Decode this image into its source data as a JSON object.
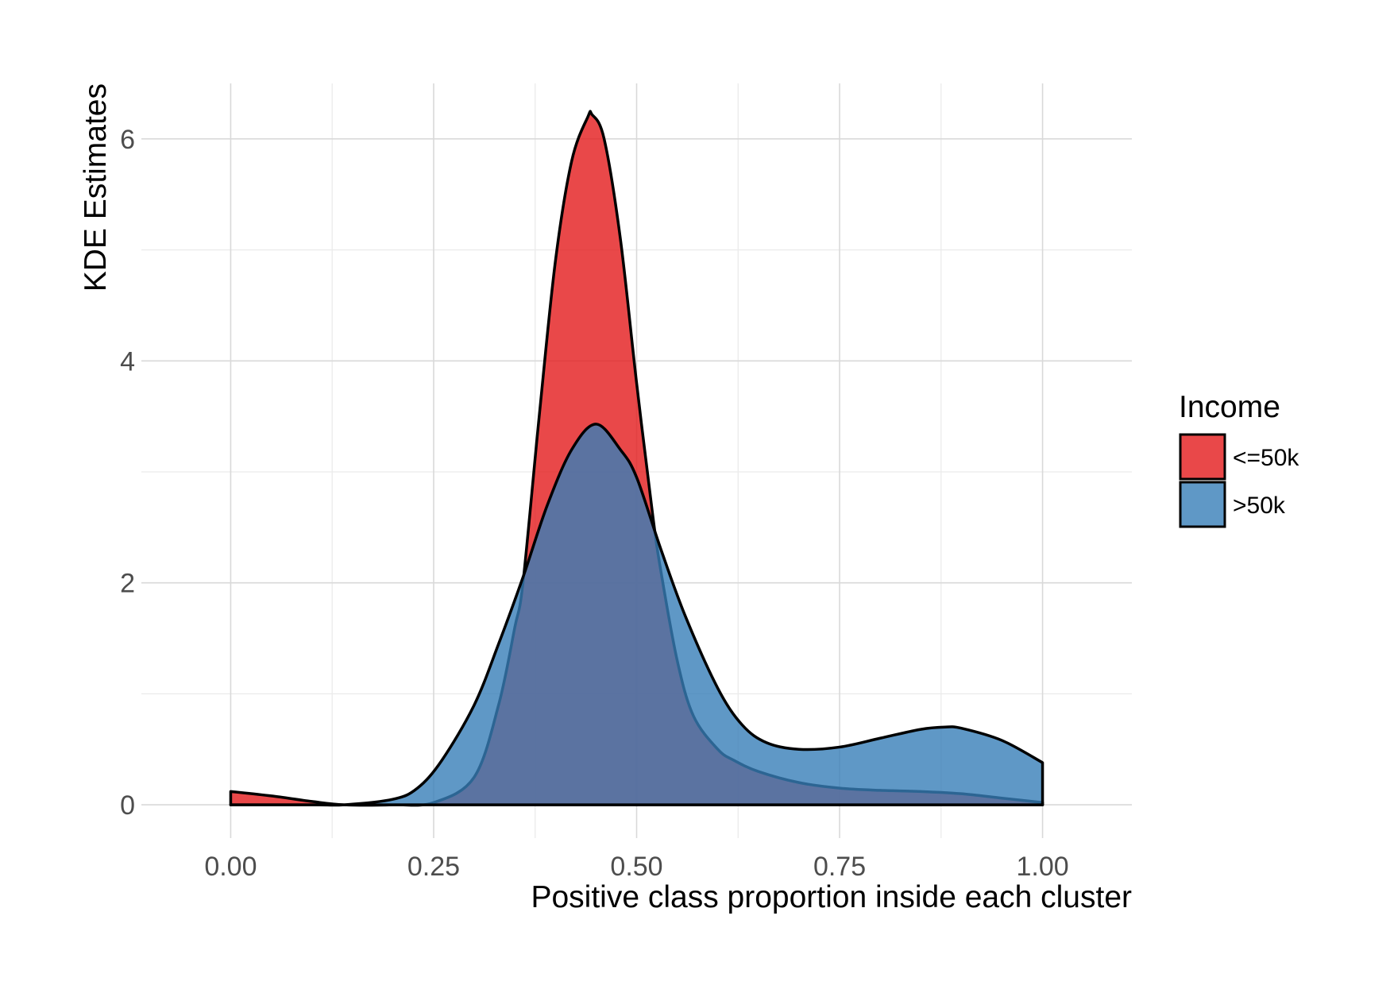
{
  "chart_data": {
    "type": "area",
    "xlabel": "Positive class proportion inside each cluster",
    "ylabel": "KDE Estimates",
    "xlim": [
      -0.11,
      1.11
    ],
    "ylim": [
      -0.3,
      6.5
    ],
    "x_ticks": [
      0.0,
      0.25,
      0.5,
      0.75,
      1.0
    ],
    "x_tick_labels": [
      "0.00",
      "0.25",
      "0.50",
      "0.75",
      "1.00"
    ],
    "y_ticks": [
      0,
      2,
      4,
      6
    ],
    "y_tick_labels": [
      "0",
      "2",
      "4",
      "6"
    ],
    "grid": true,
    "legend": {
      "title": "Income",
      "placement": "right",
      "items": [
        {
          "label": "<=50k",
          "color": "#e41a1c"
        },
        {
          "label": ">50k",
          "color": "#377eb8"
        }
      ]
    },
    "series": [
      {
        "name": "<=50k",
        "color": "#e41a1c",
        "x": [
          0.0,
          0.05,
          0.1,
          0.14,
          0.2,
          0.25,
          0.3,
          0.33,
          0.35,
          0.36,
          0.38,
          0.4,
          0.42,
          0.44,
          0.445,
          0.46,
          0.48,
          0.5,
          0.52,
          0.53,
          0.55,
          0.57,
          0.6,
          0.62,
          0.65,
          0.7,
          0.75,
          0.8,
          0.85,
          0.9,
          0.95,
          1.0
        ],
        "y": [
          0.12,
          0.08,
          0.03,
          0.0,
          0.0,
          0.02,
          0.25,
          0.9,
          1.6,
          2.0,
          3.5,
          4.9,
          5.8,
          6.2,
          6.22,
          6.0,
          5.1,
          3.8,
          2.6,
          2.1,
          1.3,
          0.8,
          0.5,
          0.4,
          0.3,
          0.2,
          0.15,
          0.13,
          0.12,
          0.1,
          0.06,
          0.02
        ]
      },
      {
        "name": ">50k",
        "color": "#377eb8",
        "x": [
          0.0,
          0.1,
          0.14,
          0.2,
          0.23,
          0.26,
          0.3,
          0.33,
          0.36,
          0.39,
          0.42,
          0.45,
          0.48,
          0.5,
          0.53,
          0.56,
          0.6,
          0.63,
          0.66,
          0.7,
          0.75,
          0.8,
          0.85,
          0.88,
          0.9,
          0.95,
          1.0
        ],
        "y": [
          0.0,
          0.0,
          0.0,
          0.05,
          0.15,
          0.4,
          0.9,
          1.45,
          2.05,
          2.7,
          3.2,
          3.43,
          3.2,
          2.95,
          2.3,
          1.7,
          1.05,
          0.72,
          0.56,
          0.5,
          0.52,
          0.6,
          0.68,
          0.7,
          0.69,
          0.58,
          0.38
        ]
      }
    ]
  }
}
